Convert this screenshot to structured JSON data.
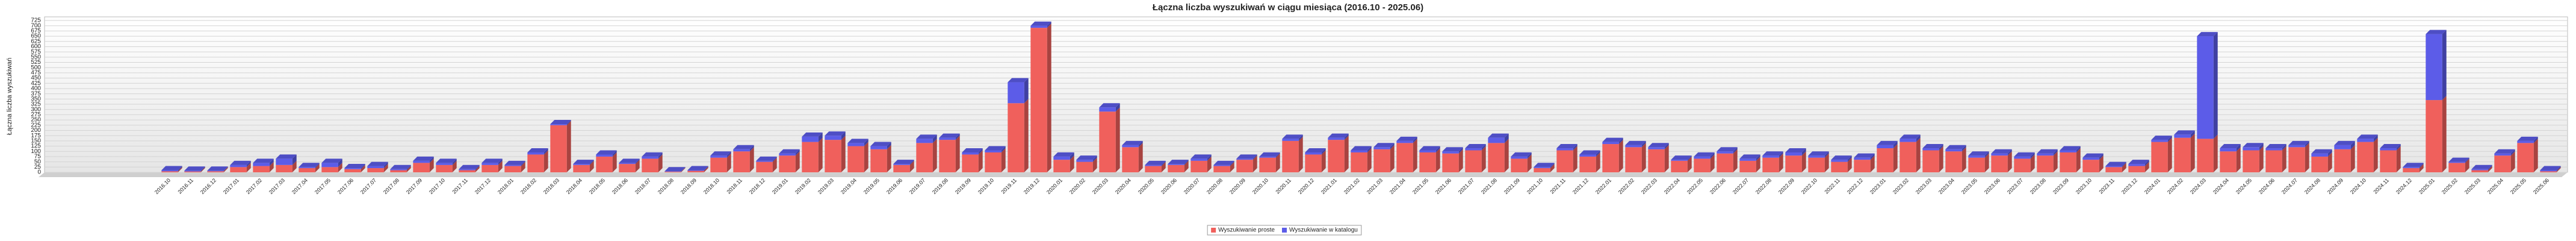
{
  "chart_data": {
    "type": "bar",
    "stacked": true,
    "title": "Łączna liczba wyszukiwań w ciągu miesiąca (2016.10 - 2025.06)",
    "y_label": "Łączna liczba wyszukiwań",
    "categories": [
      "2016.10",
      "2016.11",
      "2016.12",
      "2017.01",
      "2017.02",
      "2017.03",
      "2017.04",
      "2017.05",
      "2017.06",
      "2017.07",
      "2017.08",
      "2017.09",
      "2017.10",
      "2017.11",
      "2017.12",
      "2018.01",
      "2018.02",
      "2018.03",
      "2018.04",
      "2018.05",
      "2018.06",
      "2018.07",
      "2018.08",
      "2018.09",
      "2018.10",
      "2018.11",
      "2018.12",
      "2019.01",
      "2019.02",
      "2019.03",
      "2019.04",
      "2019.05",
      "2019.06",
      "2019.07",
      "2019.08",
      "2019.09",
      "2019.10",
      "2019.11",
      "2019.12",
      "2020.01",
      "2020.02",
      "2020.03",
      "2020.04",
      "2020.05",
      "2020.06",
      "2020.07",
      "2020.08",
      "2020.09",
      "2020.10",
      "2020.11",
      "2020.12",
      "2021.01",
      "2021.02",
      "2021.03",
      "2021.04",
      "2021.05",
      "2021.06",
      "2021.07",
      "2021.08",
      "2021.09",
      "2021.10",
      "2021.11",
      "2021.12",
      "2022.01",
      "2022.02",
      "2022.03",
      "2022.04",
      "2022.05",
      "2022.06",
      "2022.07",
      "2022.08",
      "2022.09",
      "2022.10",
      "2022.11",
      "2022.12",
      "2023.01",
      "2023.02",
      "2023.03",
      "2023.04",
      "2023.05",
      "2023.06",
      "2023.07",
      "2023.08",
      "2023.09",
      "2023.10",
      "2023.11",
      "2023.12",
      "2024.01",
      "2024.02",
      "2024.03",
      "2024.04",
      "2024.05",
      "2024.06",
      "2024.07",
      "2024.08",
      "2024.09",
      "2024.10",
      "2024.11",
      "2024.12",
      "2025.01",
      "2025.02",
      "2025.03",
      "2025.04",
      "2025.05",
      "2025.06"
    ],
    "series": [
      {
        "name": "Wyszukiwanie proste",
        "color": "#f0605c",
        "values": [
          5,
          4,
          5,
          25,
          30,
          35,
          20,
          25,
          15,
          20,
          10,
          45,
          35,
          10,
          35,
          30,
          85,
          225,
          35,
          75,
          40,
          65,
          3,
          7,
          70,
          100,
          50,
          80,
          145,
          155,
          125,
          110,
          35,
          140,
          155,
          85,
          95,
          330,
          690,
          60,
          50,
          290,
          120,
          30,
          35,
          55,
          30,
          60,
          70,
          150,
          85,
          155,
          95,
          110,
          140,
          95,
          90,
          105,
          140,
          65,
          20,
          105,
          75,
          135,
          120,
          110,
          55,
          65,
          90,
          55,
          70,
          80,
          70,
          50,
          60,
          115,
          145,
          105,
          100,
          70,
          80,
          65,
          80,
          95,
          60,
          25,
          30,
          145,
          165,
          160,
          100,
          105,
          105,
          120,
          75,
          110,
          145,
          105,
          20,
          345,
          45,
          10,
          80,
          140,
          5
        ]
      },
      {
        "name": "Wyszukiwanie w katalogu",
        "color": "#5c5ce8",
        "values": [
          5,
          4,
          3,
          10,
          15,
          30,
          5,
          20,
          5,
          10,
          5,
          10,
          10,
          5,
          10,
          5,
          10,
          5,
          5,
          10,
          5,
          10,
          2,
          3,
          10,
          10,
          5,
          10,
          25,
          20,
          15,
          15,
          5,
          20,
          10,
          10,
          10,
          100,
          10,
          15,
          10,
          20,
          10,
          5,
          5,
          10,
          5,
          5,
          5,
          10,
          10,
          10,
          10,
          10,
          10,
          10,
          10,
          10,
          25,
          10,
          5,
          10,
          10,
          10,
          10,
          10,
          5,
          10,
          10,
          10,
          10,
          15,
          10,
          10,
          10,
          15,
          15,
          10,
          10,
          10,
          10,
          10,
          10,
          10,
          10,
          5,
          10,
          10,
          15,
          490,
          15,
          15,
          10,
          10,
          15,
          20,
          15,
          10,
          5,
          315,
          5,
          5,
          10,
          10,
          5
        ]
      }
    ],
    "ylim": [
      0,
      725
    ],
    "yticks": [
      0,
      25,
      50,
      75,
      100,
      125,
      150,
      175,
      200,
      225,
      250,
      275,
      300,
      325,
      350,
      375,
      400,
      425,
      450,
      475,
      500,
      525,
      550,
      575,
      600,
      625,
      650,
      675,
      700,
      725
    ],
    "grid": true,
    "legend": "bottom"
  }
}
